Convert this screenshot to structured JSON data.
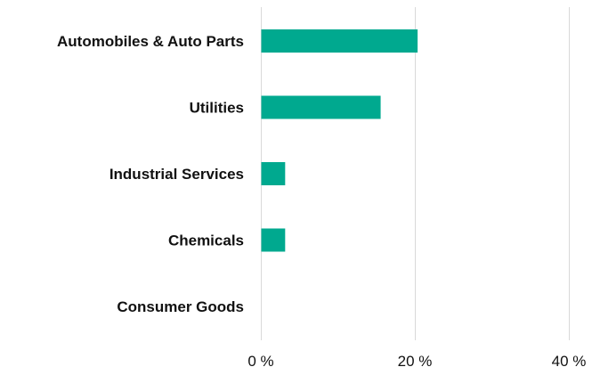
{
  "chart_data": {
    "type": "bar",
    "orientation": "horizontal",
    "categories": [
      "Automobiles & Auto Parts",
      "Utilities",
      "Industrial Services",
      "Chemicals",
      "Consumer Goods"
    ],
    "values": [
      20.3,
      15.5,
      3.1,
      3.1,
      0
    ],
    "xlim": [
      0,
      40
    ],
    "xticks": [
      0,
      20,
      40
    ],
    "xtick_labels": [
      "0 %",
      "20 %",
      "40 %"
    ],
    "grid": "vertical",
    "bar_color": "#00a98f",
    "title": "",
    "xlabel": "",
    "ylabel": ""
  }
}
